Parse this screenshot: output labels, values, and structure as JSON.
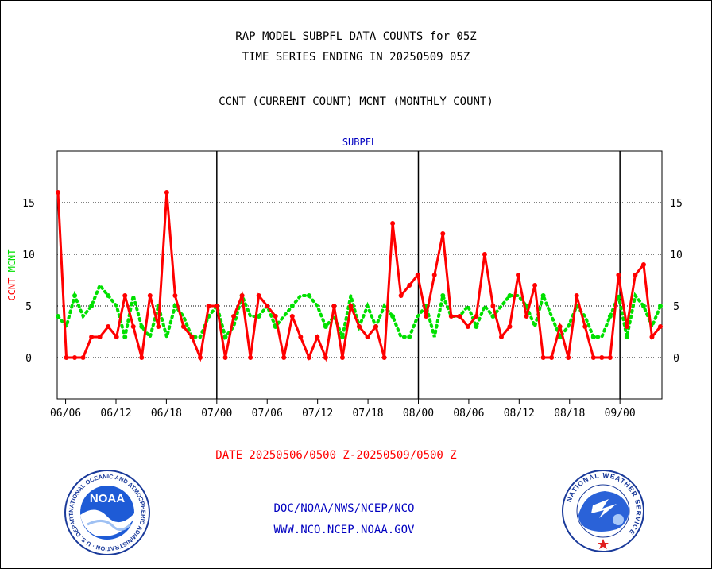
{
  "header": {
    "title_line1": "RAP MODEL SUBPFL DATA COUNTS for 05Z",
    "title_line2": "TIME SERIES ENDING IN 20250509 05Z",
    "subtitle": "CCNT (CURRENT COUNT) MCNT (MONTHLY COUNT)"
  },
  "colors": {
    "ccnt": "#ff0000",
    "mcnt": "#00e000",
    "panel_title": "#0000c0",
    "footer_link": "#0000c0"
  },
  "chart_data": {
    "type": "line",
    "title": "SUBPFL",
    "ylabel_left": [
      "CCNT",
      "MCNT"
    ],
    "ylim": [
      -4,
      20
    ],
    "yticks": [
      0,
      5,
      10,
      15
    ],
    "grid": true,
    "legend": "none",
    "categories_ticks": [
      "06/06",
      "06/12",
      "06/18",
      "07/00",
      "07/06",
      "07/12",
      "07/18",
      "08/00",
      "08/06",
      "08/12",
      "08/18",
      "09/00"
    ],
    "x_start": "06/05",
    "x_end": "09/05",
    "day_boundaries": [
      "07/00",
      "08/00",
      "09/00"
    ],
    "series": [
      {
        "name": "CCNT",
        "color": "#ff0000",
        "marker_every": 1,
        "values": [
          16,
          0,
          0,
          0,
          2,
          2,
          3,
          2,
          6,
          3,
          0,
          6,
          3,
          16,
          6,
          3,
          2,
          0,
          5,
          5,
          0,
          4,
          6,
          0,
          6,
          5,
          4,
          0,
          4,
          2,
          0,
          2,
          0,
          5,
          0,
          5,
          3,
          2,
          3,
          0,
          13,
          6,
          7,
          8,
          4,
          8,
          12,
          4,
          4,
          3,
          4,
          10,
          5,
          2,
          3,
          8,
          4,
          7,
          0,
          0,
          3,
          0,
          6,
          3,
          0,
          0,
          0,
          8,
          3,
          8,
          9,
          2,
          3
        ]
      },
      {
        "name": "MCNT",
        "color": "#00e000",
        "marker_every": 2,
        "values": [
          4,
          3,
          6,
          4,
          5,
          7,
          6,
          5,
          2,
          6,
          3,
          2,
          5,
          2,
          5,
          4,
          2,
          2,
          4,
          5,
          2,
          3,
          6,
          4,
          4,
          5,
          3,
          4,
          5,
          6,
          6,
          5,
          3,
          4,
          2,
          6,
          3,
          5,
          3,
          5,
          4,
          2,
          2,
          4,
          5,
          2,
          6,
          4,
          4,
          5,
          3,
          5,
          4,
          5,
          6,
          6,
          5,
          3,
          6,
          4,
          2,
          3,
          5,
          4,
          2,
          2,
          4,
          6,
          2,
          6,
          5,
          3,
          5
        ]
      }
    ]
  },
  "footer": {
    "date_range": "DATE 20250506/0500 Z-20250509/0500 Z",
    "org_path": "DOC/NOAA/NWS/NCEP/NCO",
    "website": "WWW.NCO.NCEP.NOAA.GOV",
    "noaa_logo_text": "NOAA",
    "noaa_ring_text": "NATIONAL OCEANIC AND ATMOSPHERIC ADMINISTRATION · U.S. DEPARTMENT OF COMMERCE",
    "nws_ring_text": "NATIONAL WEATHER SERVICE"
  }
}
